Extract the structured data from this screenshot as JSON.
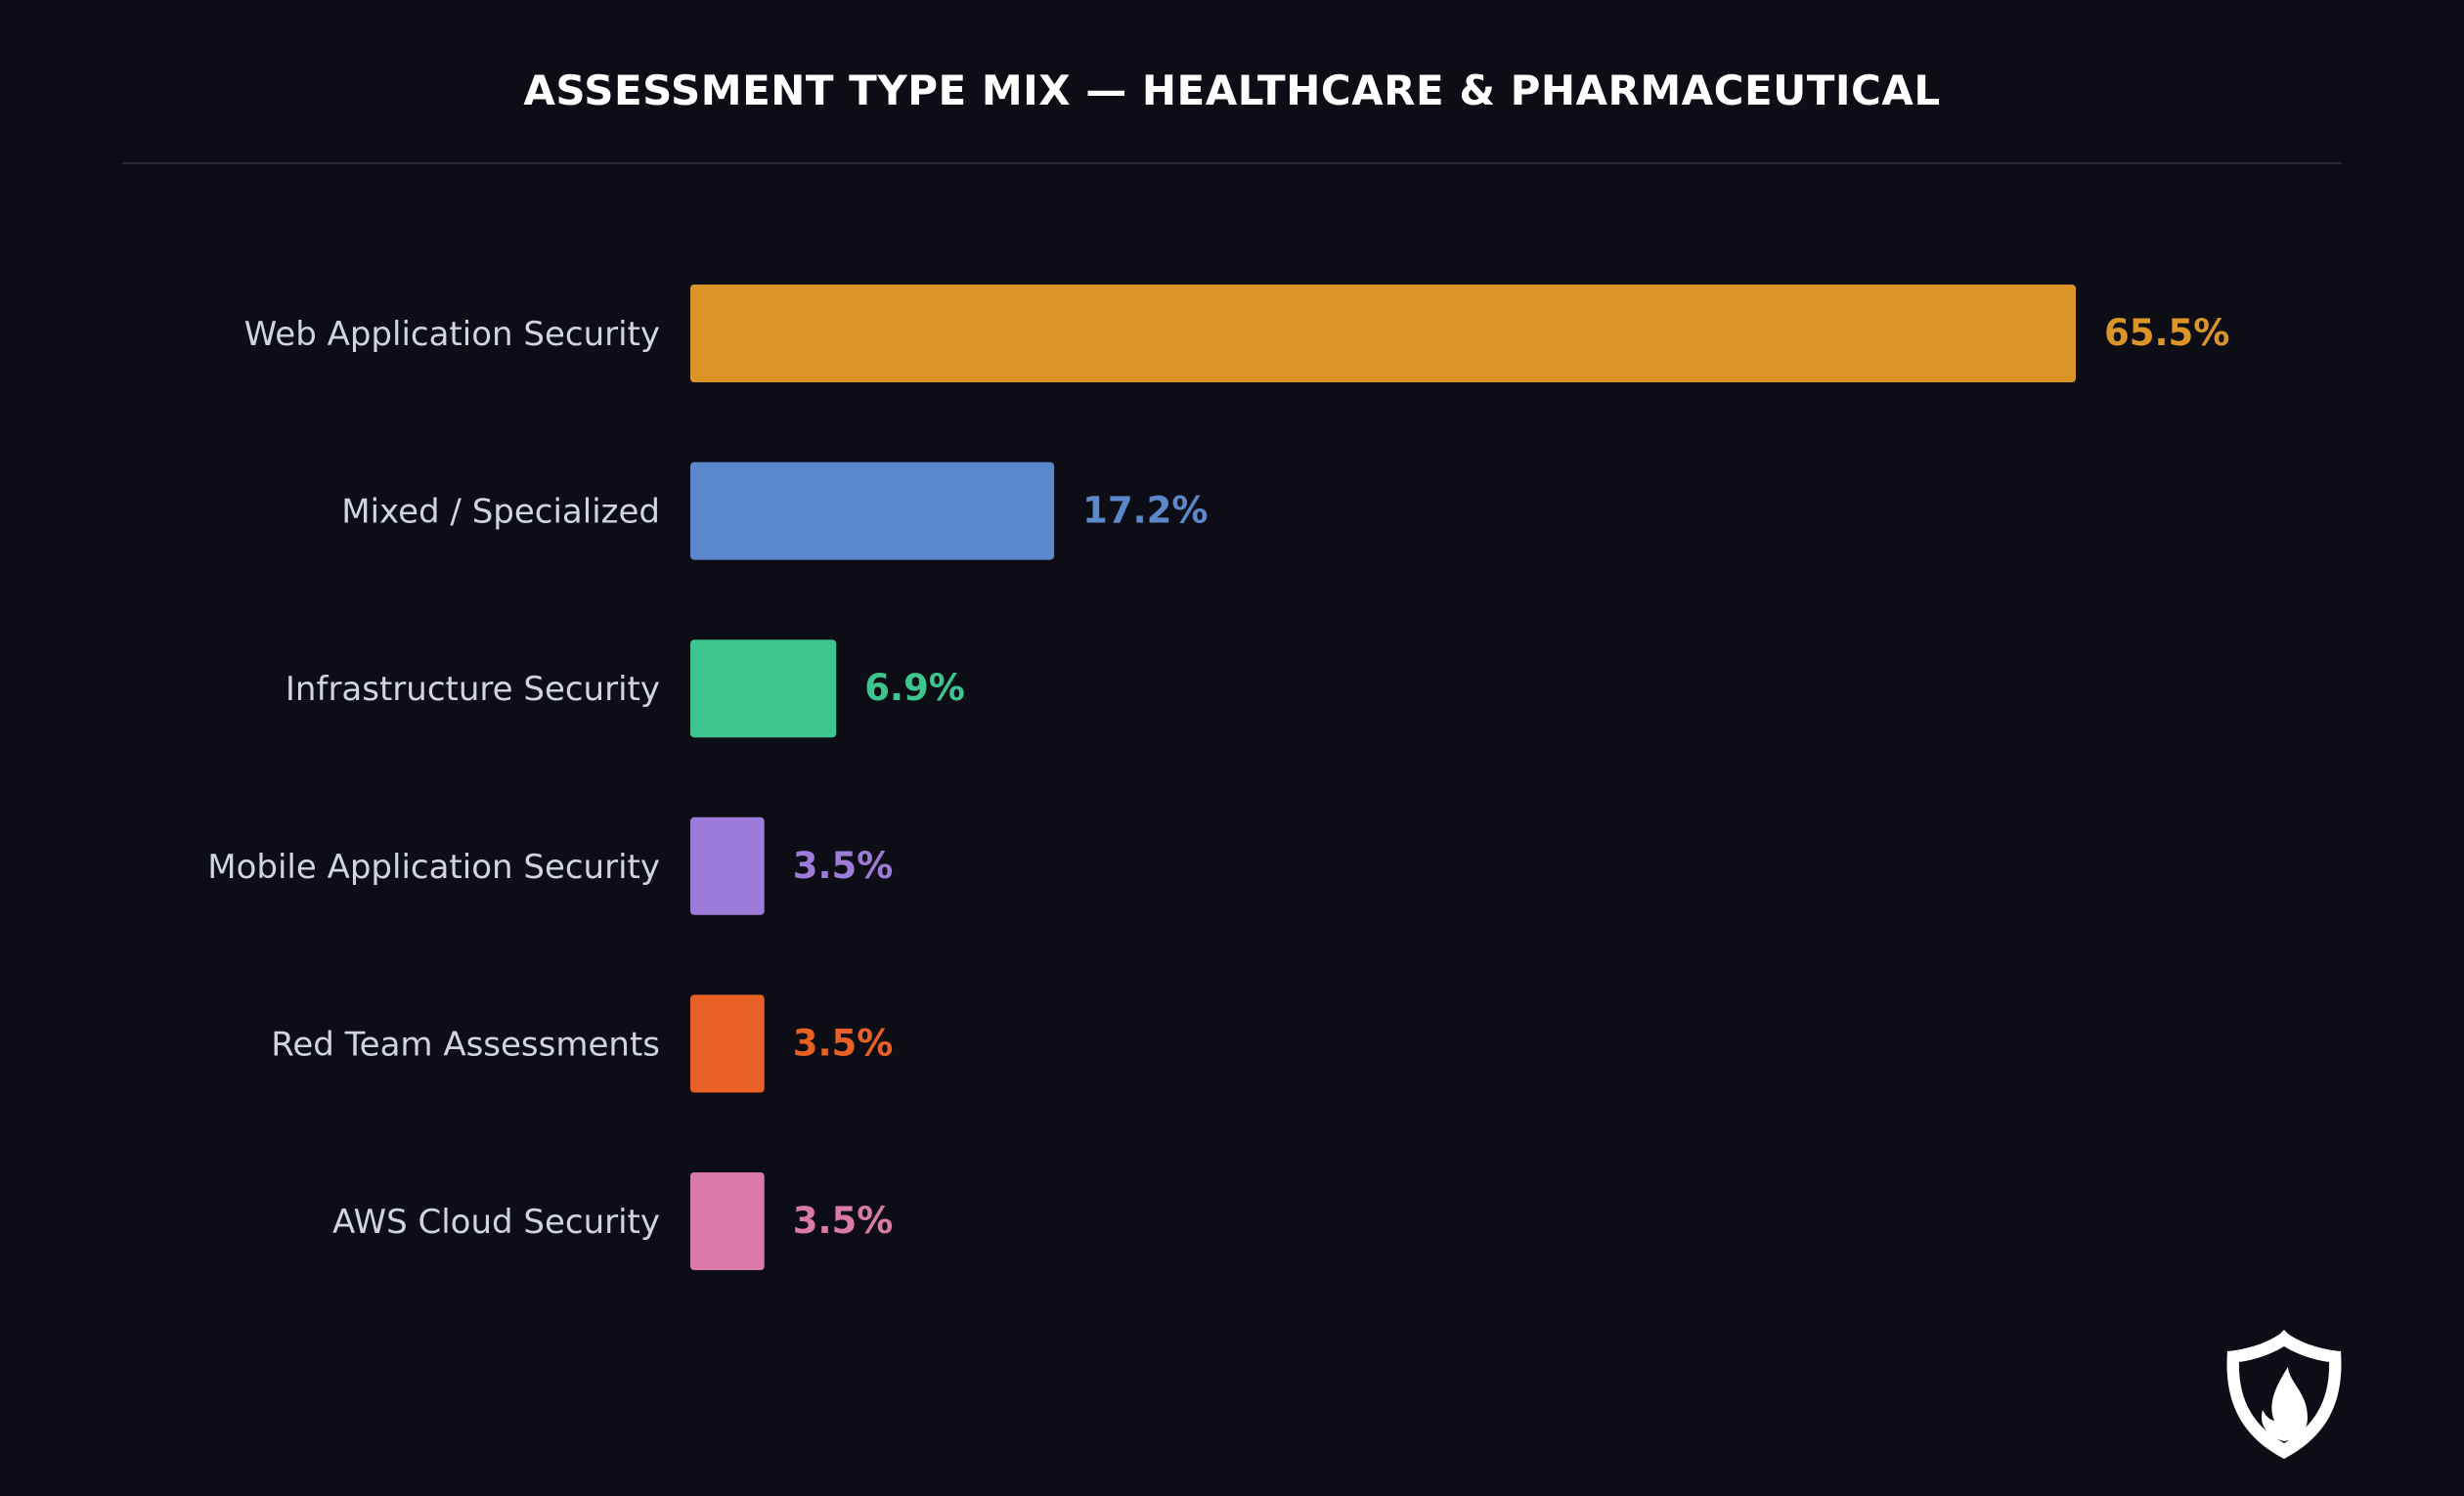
{
  "chart_data": {
    "type": "bar",
    "orientation": "horizontal",
    "title": "ASSESSMENT TYPE MIX — HEALTHCARE & PHARMACEUTICAL",
    "categories": [
      "Web Application Security",
      "Mixed / Specialized",
      "Infrastructure Security",
      "Mobile Application Security",
      "Red Team Assessments",
      "AWS Cloud Security"
    ],
    "values": [
      65.5,
      17.2,
      6.9,
      3.5,
      3.5,
      3.5
    ],
    "value_labels": [
      "65.5%",
      "17.2%",
      "6.9%",
      "3.5%",
      "3.5%",
      "3.5%"
    ],
    "colors": [
      "#db9428",
      "#5b88cb",
      "#3ec48f",
      "#9d7bd8",
      "#e86024",
      "#d97aa8"
    ],
    "unit": "%",
    "xlim": [
      0,
      65.5
    ],
    "grid": false,
    "legend": "none"
  },
  "theme": {
    "background": "#0c0d15",
    "divider": "#262836",
    "title_color": "#ffffff",
    "label_color": "#d2d4dc"
  },
  "logo": {
    "icon": "shield-flame-icon"
  }
}
